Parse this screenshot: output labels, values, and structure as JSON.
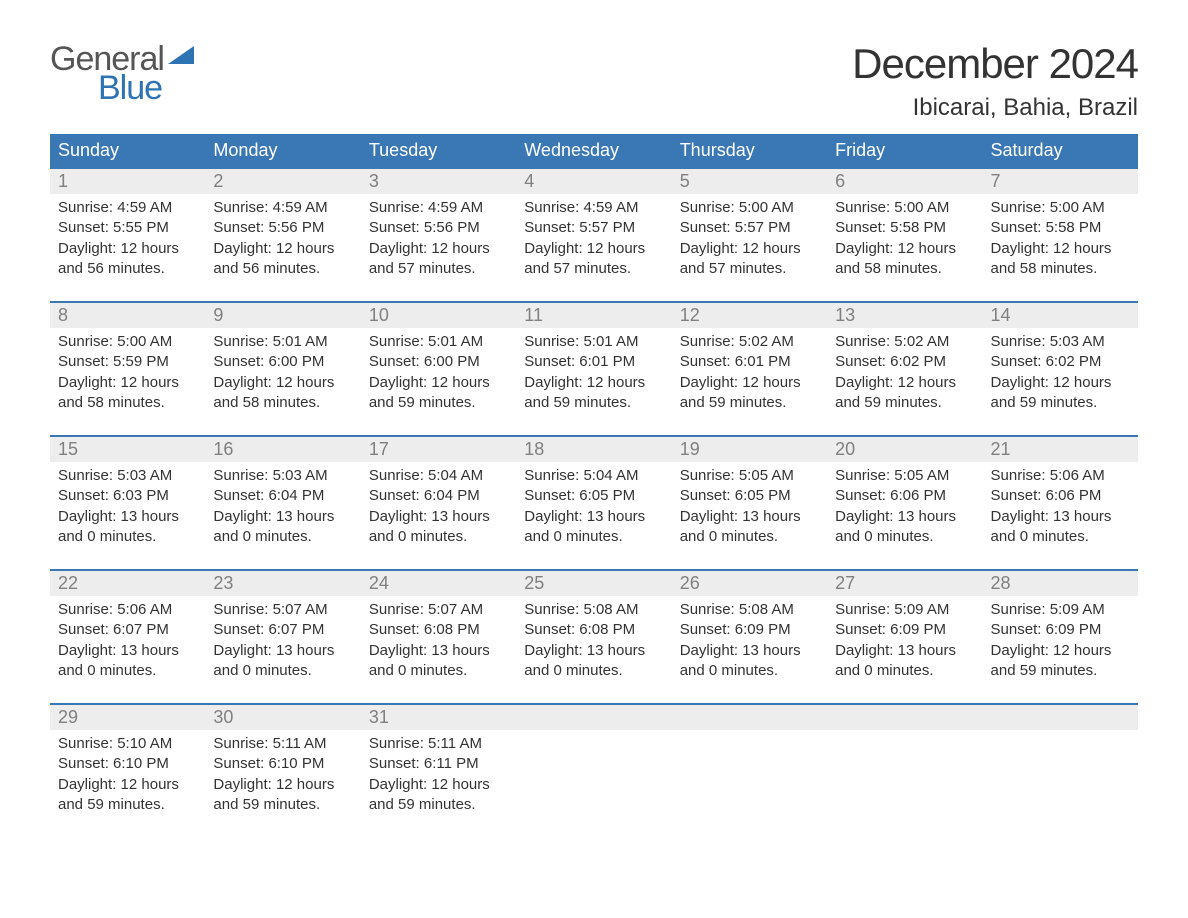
{
  "logo": {
    "word1": "General",
    "word2": "Blue",
    "shape_color": "#2e74b5"
  },
  "title": "December 2024",
  "location": "Ibicarai, Bahia, Brazil",
  "colors": {
    "header_bg": "#3a77b5",
    "header_text": "#ffffff",
    "daynum_bg": "#ededed",
    "daynum_text": "#808080",
    "body_text": "#333333",
    "row_border": "#3a77b5",
    "page_bg": "#ffffff"
  },
  "typography": {
    "font_family": "Arial",
    "title_fontsize": 42,
    "location_fontsize": 24,
    "weekday_fontsize": 18,
    "daynum_fontsize": 18,
    "detail_fontsize": 15
  },
  "weekdays": [
    "Sunday",
    "Monday",
    "Tuesday",
    "Wednesday",
    "Thursday",
    "Friday",
    "Saturday"
  ],
  "weeks": [
    [
      {
        "num": "1",
        "sunrise": "Sunrise: 4:59 AM",
        "sunset": "Sunset: 5:55 PM",
        "dl1": "Daylight: 12 hours",
        "dl2": "and 56 minutes."
      },
      {
        "num": "2",
        "sunrise": "Sunrise: 4:59 AM",
        "sunset": "Sunset: 5:56 PM",
        "dl1": "Daylight: 12 hours",
        "dl2": "and 56 minutes."
      },
      {
        "num": "3",
        "sunrise": "Sunrise: 4:59 AM",
        "sunset": "Sunset: 5:56 PM",
        "dl1": "Daylight: 12 hours",
        "dl2": "and 57 minutes."
      },
      {
        "num": "4",
        "sunrise": "Sunrise: 4:59 AM",
        "sunset": "Sunset: 5:57 PM",
        "dl1": "Daylight: 12 hours",
        "dl2": "and 57 minutes."
      },
      {
        "num": "5",
        "sunrise": "Sunrise: 5:00 AM",
        "sunset": "Sunset: 5:57 PM",
        "dl1": "Daylight: 12 hours",
        "dl2": "and 57 minutes."
      },
      {
        "num": "6",
        "sunrise": "Sunrise: 5:00 AM",
        "sunset": "Sunset: 5:58 PM",
        "dl1": "Daylight: 12 hours",
        "dl2": "and 58 minutes."
      },
      {
        "num": "7",
        "sunrise": "Sunrise: 5:00 AM",
        "sunset": "Sunset: 5:58 PM",
        "dl1": "Daylight: 12 hours",
        "dl2": "and 58 minutes."
      }
    ],
    [
      {
        "num": "8",
        "sunrise": "Sunrise: 5:00 AM",
        "sunset": "Sunset: 5:59 PM",
        "dl1": "Daylight: 12 hours",
        "dl2": "and 58 minutes."
      },
      {
        "num": "9",
        "sunrise": "Sunrise: 5:01 AM",
        "sunset": "Sunset: 6:00 PM",
        "dl1": "Daylight: 12 hours",
        "dl2": "and 58 minutes."
      },
      {
        "num": "10",
        "sunrise": "Sunrise: 5:01 AM",
        "sunset": "Sunset: 6:00 PM",
        "dl1": "Daylight: 12 hours",
        "dl2": "and 59 minutes."
      },
      {
        "num": "11",
        "sunrise": "Sunrise: 5:01 AM",
        "sunset": "Sunset: 6:01 PM",
        "dl1": "Daylight: 12 hours",
        "dl2": "and 59 minutes."
      },
      {
        "num": "12",
        "sunrise": "Sunrise: 5:02 AM",
        "sunset": "Sunset: 6:01 PM",
        "dl1": "Daylight: 12 hours",
        "dl2": "and 59 minutes."
      },
      {
        "num": "13",
        "sunrise": "Sunrise: 5:02 AM",
        "sunset": "Sunset: 6:02 PM",
        "dl1": "Daylight: 12 hours",
        "dl2": "and 59 minutes."
      },
      {
        "num": "14",
        "sunrise": "Sunrise: 5:03 AM",
        "sunset": "Sunset: 6:02 PM",
        "dl1": "Daylight: 12 hours",
        "dl2": "and 59 minutes."
      }
    ],
    [
      {
        "num": "15",
        "sunrise": "Sunrise: 5:03 AM",
        "sunset": "Sunset: 6:03 PM",
        "dl1": "Daylight: 13 hours",
        "dl2": "and 0 minutes."
      },
      {
        "num": "16",
        "sunrise": "Sunrise: 5:03 AM",
        "sunset": "Sunset: 6:04 PM",
        "dl1": "Daylight: 13 hours",
        "dl2": "and 0 minutes."
      },
      {
        "num": "17",
        "sunrise": "Sunrise: 5:04 AM",
        "sunset": "Sunset: 6:04 PM",
        "dl1": "Daylight: 13 hours",
        "dl2": "and 0 minutes."
      },
      {
        "num": "18",
        "sunrise": "Sunrise: 5:04 AM",
        "sunset": "Sunset: 6:05 PM",
        "dl1": "Daylight: 13 hours",
        "dl2": "and 0 minutes."
      },
      {
        "num": "19",
        "sunrise": "Sunrise: 5:05 AM",
        "sunset": "Sunset: 6:05 PM",
        "dl1": "Daylight: 13 hours",
        "dl2": "and 0 minutes."
      },
      {
        "num": "20",
        "sunrise": "Sunrise: 5:05 AM",
        "sunset": "Sunset: 6:06 PM",
        "dl1": "Daylight: 13 hours",
        "dl2": "and 0 minutes."
      },
      {
        "num": "21",
        "sunrise": "Sunrise: 5:06 AM",
        "sunset": "Sunset: 6:06 PM",
        "dl1": "Daylight: 13 hours",
        "dl2": "and 0 minutes."
      }
    ],
    [
      {
        "num": "22",
        "sunrise": "Sunrise: 5:06 AM",
        "sunset": "Sunset: 6:07 PM",
        "dl1": "Daylight: 13 hours",
        "dl2": "and 0 minutes."
      },
      {
        "num": "23",
        "sunrise": "Sunrise: 5:07 AM",
        "sunset": "Sunset: 6:07 PM",
        "dl1": "Daylight: 13 hours",
        "dl2": "and 0 minutes."
      },
      {
        "num": "24",
        "sunrise": "Sunrise: 5:07 AM",
        "sunset": "Sunset: 6:08 PM",
        "dl1": "Daylight: 13 hours",
        "dl2": "and 0 minutes."
      },
      {
        "num": "25",
        "sunrise": "Sunrise: 5:08 AM",
        "sunset": "Sunset: 6:08 PM",
        "dl1": "Daylight: 13 hours",
        "dl2": "and 0 minutes."
      },
      {
        "num": "26",
        "sunrise": "Sunrise: 5:08 AM",
        "sunset": "Sunset: 6:09 PM",
        "dl1": "Daylight: 13 hours",
        "dl2": "and 0 minutes."
      },
      {
        "num": "27",
        "sunrise": "Sunrise: 5:09 AM",
        "sunset": "Sunset: 6:09 PM",
        "dl1": "Daylight: 13 hours",
        "dl2": "and 0 minutes."
      },
      {
        "num": "28",
        "sunrise": "Sunrise: 5:09 AM",
        "sunset": "Sunset: 6:09 PM",
        "dl1": "Daylight: 12 hours",
        "dl2": "and 59 minutes."
      }
    ],
    [
      {
        "num": "29",
        "sunrise": "Sunrise: 5:10 AM",
        "sunset": "Sunset: 6:10 PM",
        "dl1": "Daylight: 12 hours",
        "dl2": "and 59 minutes."
      },
      {
        "num": "30",
        "sunrise": "Sunrise: 5:11 AM",
        "sunset": "Sunset: 6:10 PM",
        "dl1": "Daylight: 12 hours",
        "dl2": "and 59 minutes."
      },
      {
        "num": "31",
        "sunrise": "Sunrise: 5:11 AM",
        "sunset": "Sunset: 6:11 PM",
        "dl1": "Daylight: 12 hours",
        "dl2": "and 59 minutes."
      },
      null,
      null,
      null,
      null
    ]
  ]
}
